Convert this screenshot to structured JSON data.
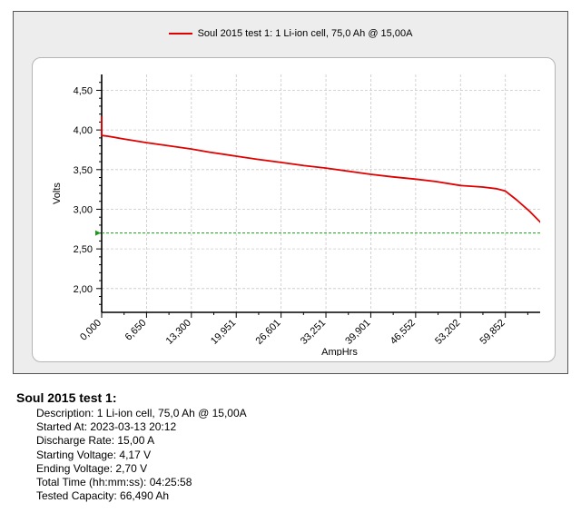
{
  "chart_data": {
    "type": "line",
    "xlabel": "AmpHrs",
    "ylabel": "Volts",
    "xlim": [
      0,
      66.49
    ],
    "ylim": [
      1.7,
      4.7
    ],
    "x_ticks": [
      0.0,
      6.65,
      13.3,
      19.951,
      26.601,
      33.251,
      39.901,
      46.552,
      53.202,
      59.852
    ],
    "x_tick_labels": [
      "0,000",
      "6,650",
      "13,300",
      "19,951",
      "26,601",
      "33,251",
      "39,901",
      "46,552",
      "53,202",
      "59,852"
    ],
    "y_ticks": [
      2.0,
      2.5,
      3.0,
      3.5,
      4.0,
      4.5
    ],
    "y_tick_labels": [
      "2,00",
      "2,50",
      "3,00",
      "3,50",
      "4,00",
      "4,50"
    ],
    "grid": true,
    "legend_position": "top-center",
    "series": [
      {
        "name": "Soul 2015 test 1: 1 Li-ion cell, 75,0 Ah @ 15,00A",
        "color": "#e00000",
        "x": [
          0.0,
          0.0,
          0.05,
          1.0,
          3.0,
          6.65,
          10.0,
          13.3,
          16.0,
          19.951,
          23.0,
          26.601,
          30.0,
          33.251,
          36.5,
          39.901,
          43.0,
          46.552,
          49.5,
          53.202,
          56.5,
          58.5,
          59.852,
          61.5,
          63.5,
          65.0,
          66.49
        ],
        "y": [
          4.17,
          3.93,
          3.93,
          3.92,
          3.89,
          3.84,
          3.8,
          3.76,
          3.72,
          3.67,
          3.63,
          3.59,
          3.55,
          3.52,
          3.48,
          3.44,
          3.41,
          3.38,
          3.35,
          3.3,
          3.28,
          3.26,
          3.23,
          3.12,
          2.97,
          2.84,
          2.7
        ]
      }
    ],
    "reference_line": {
      "y": 2.7,
      "color": "#1a9a1a",
      "style": "dashed"
    }
  },
  "summary": {
    "title": "Soul 2015 test 1:",
    "lines": [
      "Description: 1 Li-ion cell, 75,0 Ah @ 15,00A",
      "Started At: 2023-03-13 20:12",
      "Discharge Rate: 15,00 A",
      "Starting Voltage: 4,17 V",
      "Ending Voltage: 2,70 V",
      "Total Time (hh:mm:ss): 04:25:58",
      "Tested Capacity: 66,490 Ah"
    ]
  }
}
